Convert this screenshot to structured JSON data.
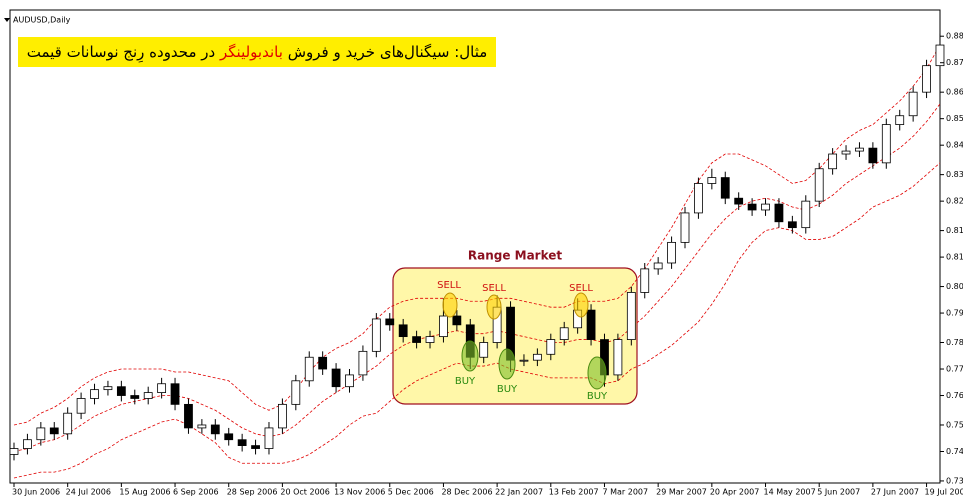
{
  "chart_data": {
    "type": "candlestick",
    "title": "AUDUSD,Daily",
    "headline": {
      "before": "مثال: سیگنال‌های خرید و فروش",
      "highlight": "باندبولینگر",
      "after": "در محدوده رِنج نوسانات قیمت"
    },
    "range_label": "Range Market",
    "sell_labels": [
      "SELL",
      "SELL",
      "SELL"
    ],
    "buy_labels": [
      "BUY",
      "BUY",
      "BUY"
    ],
    "categories": [
      "30 Jun 2006",
      null,
      null,
      null,
      "24 Jul 2006",
      null,
      null,
      null,
      "15 Aug 2006",
      null,
      null,
      null,
      "6 Sep 2006",
      null,
      null,
      null,
      "28 Sep 2006",
      null,
      null,
      null,
      "20 Oct 2006",
      null,
      null,
      null,
      "13 Nov 2006",
      null,
      null,
      null,
      "5 Dec 2006",
      null,
      null,
      null,
      "28 Dec 2006",
      null,
      null,
      null,
      "22 Jan 2007",
      null,
      null,
      null,
      "13 Feb 2007",
      null,
      null,
      null,
      "7 Mar 2007",
      null,
      null,
      null,
      "29 Mar 2007",
      null,
      null,
      null,
      "20 Apr 2007",
      null,
      null,
      null,
      "14 May 2007",
      null,
      null,
      null,
      "5 Jun 2007",
      null,
      null,
      null,
      "27 Jun 2007",
      null,
      null,
      null,
      "19 Jul 2007",
      null
    ],
    "open": [
      0.743,
      0.745,
      0.748,
      0.752,
      0.75,
      0.757,
      0.762,
      0.765,
      0.766,
      0.763,
      0.762,
      0.764,
      0.767,
      0.76,
      0.752,
      0.753,
      0.75,
      0.748,
      0.746,
      0.745,
      0.752,
      0.76,
      0.768,
      0.776,
      0.772,
      0.766,
      0.77,
      0.778,
      0.789,
      0.787,
      0.783,
      0.781,
      0.783,
      0.79,
      0.787,
      0.776,
      0.781,
      0.793,
      0.775,
      0.775,
      0.777,
      0.782,
      0.786,
      0.792,
      0.782,
      0.77,
      0.782,
      0.798,
      0.806,
      0.808,
      0.815,
      0.825,
      0.835,
      0.837,
      0.83,
      0.828,
      0.826,
      0.828,
      0.822,
      0.82,
      0.829,
      0.84,
      0.845,
      0.846,
      0.847,
      0.842,
      0.855,
      0.858,
      0.866,
      0.875
    ],
    "high": [
      0.747,
      0.75,
      0.754,
      0.754,
      0.759,
      0.764,
      0.767,
      0.768,
      0.768,
      0.765,
      0.766,
      0.769,
      0.769,
      0.762,
      0.755,
      0.755,
      0.752,
      0.75,
      0.748,
      0.754,
      0.762,
      0.77,
      0.778,
      0.778,
      0.774,
      0.772,
      0.78,
      0.791,
      0.791,
      0.789,
      0.785,
      0.785,
      0.796,
      0.792,
      0.789,
      0.783,
      0.797,
      0.795,
      0.777,
      0.779,
      0.784,
      0.788,
      0.796,
      0.794,
      0.784,
      0.784,
      0.8,
      0.808,
      0.81,
      0.817,
      0.827,
      0.837,
      0.84,
      0.839,
      0.832,
      0.83,
      0.83,
      0.83,
      0.824,
      0.831,
      0.842,
      0.847,
      0.848,
      0.849,
      0.849,
      0.857,
      0.86,
      0.868,
      0.877,
      0.886
    ],
    "low": [
      0.741,
      0.743,
      0.746,
      0.748,
      0.748,
      0.755,
      0.76,
      0.763,
      0.761,
      0.76,
      0.76,
      0.762,
      0.758,
      0.75,
      0.75,
      0.748,
      0.746,
      0.744,
      0.743,
      0.743,
      0.75,
      0.758,
      0.766,
      0.77,
      0.764,
      0.764,
      0.768,
      0.776,
      0.785,
      0.781,
      0.779,
      0.779,
      0.781,
      0.785,
      0.772,
      0.774,
      0.779,
      0.771,
      0.773,
      0.773,
      0.775,
      0.78,
      0.784,
      0.78,
      0.766,
      0.768,
      0.78,
      0.796,
      0.804,
      0.806,
      0.813,
      0.823,
      0.833,
      0.828,
      0.826,
      0.824,
      0.824,
      0.82,
      0.818,
      0.818,
      0.827,
      0.838,
      0.843,
      0.844,
      0.84,
      0.84,
      0.853,
      0.856,
      0.864,
      0.873
    ],
    "close": [
      0.745,
      0.748,
      0.752,
      0.75,
      0.757,
      0.762,
      0.765,
      0.766,
      0.763,
      0.762,
      0.764,
      0.767,
      0.76,
      0.752,
      0.753,
      0.75,
      0.748,
      0.746,
      0.745,
      0.752,
      0.76,
      0.768,
      0.776,
      0.772,
      0.766,
      0.77,
      0.778,
      0.789,
      0.787,
      0.783,
      0.781,
      0.783,
      0.79,
      0.787,
      0.776,
      0.781,
      0.793,
      0.775,
      0.775,
      0.777,
      0.782,
      0.786,
      0.792,
      0.782,
      0.77,
      0.782,
      0.798,
      0.806,
      0.808,
      0.815,
      0.825,
      0.835,
      0.837,
      0.83,
      0.828,
      0.826,
      0.828,
      0.822,
      0.82,
      0.829,
      0.84,
      0.845,
      0.846,
      0.847,
      0.842,
      0.855,
      0.858,
      0.866,
      0.875,
      0.882
    ],
    "up_color": "#ffffff",
    "down_color": "#000000",
    "bands": {
      "color": "#e00000",
      "upper": [
        0.753,
        0.754,
        0.757,
        0.759,
        0.762,
        0.766,
        0.769,
        0.771,
        0.772,
        0.772,
        0.772,
        0.772,
        0.771,
        0.771,
        0.77,
        0.769,
        0.768,
        0.764,
        0.76,
        0.758,
        0.76,
        0.765,
        0.771,
        0.776,
        0.779,
        0.781,
        0.784,
        0.789,
        0.793,
        0.795,
        0.796,
        0.796,
        0.796,
        0.796,
        0.795,
        0.795,
        0.796,
        0.796,
        0.795,
        0.794,
        0.793,
        0.793,
        0.795,
        0.795,
        0.795,
        0.796,
        0.8,
        0.806,
        0.813,
        0.82,
        0.828,
        0.836,
        0.842,
        0.845,
        0.845,
        0.843,
        0.841,
        0.838,
        0.835,
        0.836,
        0.84,
        0.845,
        0.85,
        0.853,
        0.855,
        0.859,
        0.863,
        0.868,
        0.874,
        0.882
      ],
      "middle": [
        0.744,
        0.745,
        0.747,
        0.748,
        0.75,
        0.753,
        0.756,
        0.758,
        0.76,
        0.761,
        0.762,
        0.763,
        0.763,
        0.762,
        0.76,
        0.758,
        0.755,
        0.752,
        0.75,
        0.749,
        0.75,
        0.753,
        0.757,
        0.761,
        0.764,
        0.767,
        0.77,
        0.773,
        0.777,
        0.78,
        0.782,
        0.783,
        0.784,
        0.785,
        0.784,
        0.784,
        0.785,
        0.784,
        0.783,
        0.782,
        0.781,
        0.781,
        0.782,
        0.782,
        0.781,
        0.782,
        0.786,
        0.79,
        0.795,
        0.8,
        0.806,
        0.812,
        0.818,
        0.823,
        0.827,
        0.829,
        0.83,
        0.829,
        0.827,
        0.826,
        0.828,
        0.831,
        0.835,
        0.838,
        0.841,
        0.844,
        0.847,
        0.851,
        0.856,
        0.862
      ],
      "lower": [
        0.735,
        0.736,
        0.737,
        0.737,
        0.738,
        0.74,
        0.743,
        0.745,
        0.748,
        0.75,
        0.752,
        0.754,
        0.755,
        0.753,
        0.75,
        0.747,
        0.742,
        0.74,
        0.74,
        0.74,
        0.74,
        0.741,
        0.743,
        0.746,
        0.749,
        0.753,
        0.756,
        0.757,
        0.761,
        0.765,
        0.768,
        0.77,
        0.772,
        0.774,
        0.773,
        0.773,
        0.774,
        0.772,
        0.771,
        0.77,
        0.769,
        0.769,
        0.769,
        0.769,
        0.767,
        0.768,
        0.772,
        0.774,
        0.777,
        0.78,
        0.784,
        0.788,
        0.794,
        0.801,
        0.809,
        0.815,
        0.819,
        0.82,
        0.819,
        0.816,
        0.816,
        0.817,
        0.82,
        0.823,
        0.827,
        0.829,
        0.831,
        0.834,
        0.838,
        0.842
      ]
    },
    "ylim": [
      0.7333,
      0.8939
    ],
    "yticks": [
      0.885,
      0.876,
      0.866,
      0.857,
      0.848,
      0.838,
      0.829,
      0.819,
      {
        "value": 0.81,
        "label": "0.810"
      },
      {
        "value": 0.8,
        "label": "0.800"
      },
      0.791,
      0.781,
      0.772,
      0.763,
      0.753,
      0.744,
      0.734
    ]
  }
}
